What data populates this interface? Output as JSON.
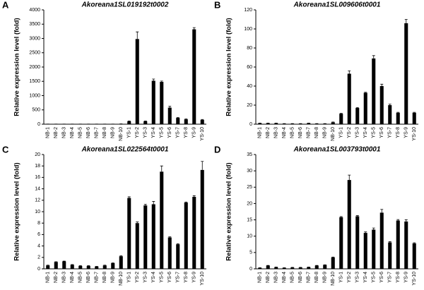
{
  "chart_data": [
    {
      "type": "bar",
      "label": "A",
      "title": "Akoreana1SL019192t0002",
      "y_label": "Relative expression level (fold)",
      "color": "#000000",
      "categories": [
        "NB-1",
        "NB-2",
        "NB-3",
        "NB-4",
        "NB-5",
        "NB-6",
        "NB-7",
        "NB-8",
        "NB-9",
        "NB-10",
        "YS-1",
        "YS-2",
        "YS-3",
        "YS-4",
        "YS-5",
        "YS-6",
        "YS-7",
        "YS-8",
        "YS-9",
        "YS-10"
      ],
      "values": [
        5,
        5,
        5,
        5,
        5,
        5,
        5,
        5,
        5,
        10,
        100,
        2980,
        100,
        1520,
        1480,
        580,
        220,
        170,
        3320,
        150
      ],
      "errors": [
        1,
        1,
        1,
        1,
        1,
        1,
        1,
        1,
        1,
        2,
        10,
        250,
        10,
        60,
        30,
        50,
        15,
        15,
        60,
        15
      ],
      "ylim": [
        0,
        4000
      ],
      "yticks": [
        0,
        500,
        1000,
        1500,
        2000,
        2500,
        3000,
        3500,
        4000
      ]
    },
    {
      "type": "bar",
      "label": "B",
      "title": "Akoreana1SL009606t0001",
      "y_label": "Relative expression level (fold)",
      "color": "#000000",
      "categories": [
        "NB-1",
        "NB-2",
        "NB-3",
        "NB-4",
        "NB-5",
        "NB-6",
        "NB-7",
        "NB-8",
        "NB-9",
        "NB-10",
        "YS-1",
        "YS-2",
        "YS-3",
        "YS-4",
        "YS-5",
        "YS-6",
        "YS-7",
        "YS-8",
        "YS-9",
        "YS-10"
      ],
      "values": [
        1,
        1,
        1,
        0.5,
        0.5,
        0.5,
        1,
        0.5,
        0.5,
        2,
        11,
        53,
        17,
        33,
        69,
        40,
        20,
        12,
        106,
        12
      ],
      "errors": [
        0.2,
        0.2,
        0.2,
        0.1,
        0.1,
        0.1,
        0.2,
        0.1,
        0.1,
        0.3,
        0.5,
        3,
        0.5,
        0.5,
        3,
        2,
        1,
        0.5,
        4,
        0.5
      ],
      "ylim": [
        0,
        120
      ],
      "yticks": [
        0,
        20,
        40,
        60,
        80,
        100,
        120
      ]
    },
    {
      "type": "bar",
      "label": "C",
      "title": "Akoreana1SL022564t0001",
      "y_label": "Relative expression level (fold)",
      "color": "#000000",
      "categories": [
        "NB-1",
        "NB-2",
        "NB-3",
        "NB-4",
        "NB-5",
        "NB-6",
        "NB-7",
        "NB-8",
        "NB-9",
        "NB-10",
        "YS-1",
        "YS-2",
        "YS-3",
        "YS-4",
        "YS-5",
        "YS-6",
        "YS-7",
        "YS-8",
        "YS-9",
        "YS-10"
      ],
      "values": [
        0.6,
        1.2,
        1.3,
        0.7,
        0.5,
        0.5,
        0.4,
        0.6,
        1.0,
        2.2,
        12.4,
        8.0,
        11.1,
        11.3,
        17.0,
        5.5,
        4.3,
        11.6,
        12.6,
        17.3
      ],
      "errors": [
        0.05,
        0.05,
        0.05,
        0.05,
        0.05,
        0.05,
        0.05,
        0.05,
        0.05,
        0.1,
        0.2,
        0.2,
        0.2,
        0.5,
        1.0,
        0.1,
        0.1,
        0.1,
        0.2,
        1.5
      ],
      "ylim": [
        0,
        20
      ],
      "yticks": [
        0,
        2,
        4,
        6,
        8,
        10,
        12,
        14,
        16,
        18,
        20
      ]
    },
    {
      "type": "bar",
      "label": "D",
      "title": "Akoreana1SL003793t0001",
      "y_label": "Relative expression level (fold)",
      "color": "#000000",
      "categories": [
        "NB-1",
        "NB-2",
        "NB-3",
        "NB-4",
        "NB-5",
        "NB-6",
        "NB-7",
        "NB-8",
        "NB-9",
        "NB-10",
        "YS-1",
        "YS-2",
        "YS-3",
        "YS-4",
        "YS-5",
        "YS-6",
        "YS-7",
        "YS-8",
        "YS-9",
        "YS-10"
      ],
      "values": [
        0.3,
        1.0,
        0.5,
        0.3,
        0.4,
        0.4,
        0.5,
        1.0,
        1.2,
        3.5,
        15.8,
        27.2,
        16.1,
        11.0,
        12.0,
        17.2,
        8.1,
        14.8,
        14.5,
        7.8
      ],
      "errors": [
        0.05,
        0.05,
        0.05,
        0.05,
        0.05,
        0.05,
        0.05,
        0.05,
        0.05,
        0.1,
        0.2,
        1.5,
        0.2,
        0.3,
        0.5,
        1.0,
        0.2,
        0.3,
        0.5,
        0.2
      ],
      "ylim": [
        0,
        35
      ],
      "yticks": [
        0,
        5,
        10,
        15,
        20,
        25,
        30,
        35
      ]
    }
  ]
}
